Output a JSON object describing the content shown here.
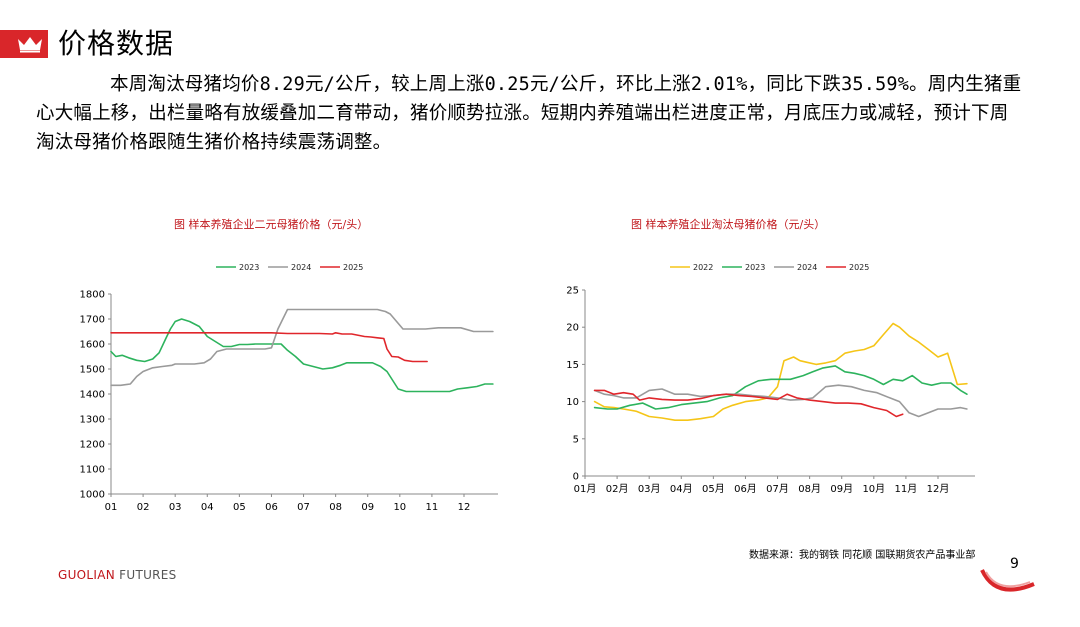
{
  "page": {
    "title": "价格数据",
    "summary": "本周淘汰母猪均价8.29元/公斤，较上周上涨0.25元/公斤，环比上涨2.01%，同比下跌35.59%。周内生猪重心大幅上移，出栏量略有放缓叠加二育带动，猪价顺势拉涨。短期内养殖端出栏进度正常，月底压力或减轻，预计下周淘汰母猪价格跟随生猪价格持续震荡调整。",
    "source": "数据来源：我的钢铁  同花顺  国联期货农产品事业部",
    "brand_main": "GUOLIAN",
    "brand_sub": " FUTURES",
    "page_number": "9"
  },
  "colors": {
    "accent": "#d9262a",
    "s2022": "#f5c518",
    "s2023": "#2db35d",
    "s2024": "#9a9a9a",
    "s2025": "#e0262b"
  },
  "chart_data": [
    {
      "type": "line",
      "title": "图  样本养殖企业二元母猪价格（元/头）",
      "categories": [
        "01",
        "02",
        "03",
        "04",
        "05",
        "06",
        "07",
        "08",
        "09",
        "10",
        "11",
        "12"
      ],
      "ylim": [
        1000,
        1800
      ],
      "yticks": [
        1000,
        1100,
        1200,
        1300,
        1400,
        1500,
        1600,
        1700,
        1800
      ],
      "series": [
        {
          "name": "2023",
          "color_key": "s2023",
          "x": [
            1.0,
            1.15,
            1.35,
            1.55,
            1.8,
            2.05,
            2.3,
            2.5,
            2.7,
            2.85,
            3.0,
            3.2,
            3.45,
            3.75,
            4.0,
            4.25,
            4.5,
            4.75,
            5.0,
            5.25,
            5.5,
            5.75,
            6.0,
            6.15,
            6.3,
            6.5,
            6.75,
            7.0,
            7.3,
            7.6,
            7.9,
            8.15,
            8.35,
            8.6,
            8.9,
            9.15,
            9.4,
            9.6,
            9.8,
            9.95,
            10.2,
            10.5,
            10.8,
            11.0,
            11.3,
            11.55,
            11.8,
            12.1,
            12.4,
            12.65,
            12.9
          ],
          "values": [
            1570,
            1550,
            1555,
            1545,
            1535,
            1530,
            1540,
            1565,
            1620,
            1660,
            1690,
            1700,
            1690,
            1670,
            1630,
            1610,
            1590,
            1590,
            1598,
            1598,
            1600,
            1600,
            1600,
            1600,
            1600,
            1575,
            1550,
            1520,
            1510,
            1500,
            1505,
            1515,
            1525,
            1525,
            1525,
            1525,
            1510,
            1490,
            1450,
            1420,
            1410,
            1410,
            1410,
            1410,
            1410,
            1410,
            1420,
            1425,
            1430,
            1440,
            1440
          ]
        },
        {
          "name": "2024",
          "color_key": "s2024",
          "x": [
            1.0,
            1.3,
            1.6,
            1.8,
            2.0,
            2.3,
            2.6,
            2.9,
            3.0,
            3.3,
            3.6,
            3.9,
            4.1,
            4.3,
            4.6,
            4.9,
            5.2,
            5.5,
            5.8,
            6.0,
            6.2,
            6.5,
            6.8,
            7.1,
            7.5,
            7.9,
            8.3,
            8.7,
            9.0,
            9.3,
            9.55,
            9.7,
            9.9,
            10.1,
            10.3,
            10.5,
            10.8,
            11.2,
            11.6,
            11.9,
            12.3,
            12.6,
            12.9
          ],
          "values": [
            1435,
            1435,
            1440,
            1470,
            1490,
            1505,
            1510,
            1515,
            1520,
            1520,
            1520,
            1525,
            1540,
            1570,
            1580,
            1580,
            1580,
            1580,
            1580,
            1585,
            1660,
            1738,
            1738,
            1738,
            1738,
            1738,
            1738,
            1738,
            1738,
            1738,
            1730,
            1720,
            1690,
            1660,
            1660,
            1660,
            1660,
            1665,
            1665,
            1665,
            1650,
            1650,
            1650
          ]
        },
        {
          "name": "2025",
          "color_key": "s2025",
          "x": [
            1.0,
            2.0,
            3.0,
            4.0,
            5.0,
            6.0,
            6.5,
            7.0,
            7.5,
            7.9,
            8.0,
            8.2,
            8.5,
            8.9,
            9.1,
            9.3,
            9.5,
            9.6,
            9.75,
            9.95,
            10.15,
            10.4,
            10.6,
            10.85
          ],
          "values": [
            1645,
            1645,
            1645,
            1645,
            1645,
            1645,
            1642,
            1642,
            1642,
            1640,
            1645,
            1640,
            1640,
            1630,
            1628,
            1625,
            1622,
            1580,
            1550,
            1548,
            1535,
            1530,
            1530,
            1530
          ]
        }
      ]
    },
    {
      "type": "line",
      "title": "图  样本养殖企业淘汰母猪价格（元/头）",
      "categories": [
        "01月",
        "02月",
        "03月",
        "04月",
        "05月",
        "06月",
        "07月",
        "08月",
        "09月",
        "10月",
        "11月",
        "12月"
      ],
      "ylim": [
        0,
        25
      ],
      "yticks": [
        0,
        5,
        10,
        15,
        20,
        25
      ],
      "series": [
        {
          "name": "2022",
          "color_key": "s2022",
          "x": [
            1.3,
            1.6,
            1.9,
            2.2,
            2.6,
            3.0,
            3.4,
            3.8,
            4.2,
            4.6,
            5.0,
            5.3,
            5.6,
            6.0,
            6.4,
            6.7,
            7.0,
            7.2,
            7.5,
            7.7,
            7.9,
            8.2,
            8.5,
            8.8,
            9.1,
            9.4,
            9.7,
            10.0,
            10.3,
            10.6,
            10.8,
            11.1,
            11.4,
            11.7,
            12.0,
            12.3,
            12.6,
            12.9
          ],
          "values": [
            10.0,
            9.3,
            9.2,
            9.0,
            8.7,
            8.0,
            7.8,
            7.5,
            7.5,
            7.7,
            8.0,
            9.0,
            9.5,
            10.0,
            10.2,
            10.5,
            12.0,
            15.5,
            16.0,
            15.5,
            15.3,
            15.0,
            15.2,
            15.5,
            16.5,
            16.8,
            17.0,
            17.5,
            19.0,
            20.5,
            20.0,
            18.8,
            18.0,
            17.0,
            16.0,
            16.5,
            12.3,
            12.4
          ]
        },
        {
          "name": "2023",
          "color_key": "s2023",
          "x": [
            1.3,
            1.7,
            2.0,
            2.4,
            2.8,
            3.2,
            3.6,
            4.0,
            4.4,
            4.8,
            5.2,
            5.6,
            6.0,
            6.4,
            6.8,
            7.1,
            7.4,
            7.8,
            8.1,
            8.4,
            8.8,
            9.1,
            9.4,
            9.7,
            10.0,
            10.3,
            10.6,
            10.9,
            11.2,
            11.5,
            11.8,
            12.1,
            12.4,
            12.7,
            12.9
          ],
          "values": [
            9.2,
            9.0,
            9.0,
            9.5,
            9.8,
            9.0,
            9.2,
            9.6,
            9.8,
            10.0,
            10.5,
            10.8,
            12.0,
            12.8,
            13.0,
            13.0,
            13.0,
            13.5,
            14.0,
            14.5,
            14.8,
            14.0,
            13.8,
            13.5,
            13.0,
            12.3,
            13.0,
            12.8,
            13.5,
            12.5,
            12.2,
            12.5,
            12.5,
            11.5,
            11.0
          ]
        },
        {
          "name": "2024",
          "color_key": "s2024",
          "x": [
            1.3,
            1.6,
            1.9,
            2.2,
            2.6,
            3.0,
            3.4,
            3.8,
            4.2,
            4.6,
            5.0,
            5.4,
            5.8,
            6.2,
            6.6,
            7.0,
            7.4,
            7.8,
            8.1,
            8.5,
            8.9,
            9.3,
            9.7,
            10.1,
            10.5,
            10.8,
            11.1,
            11.4,
            11.7,
            12.0,
            12.4,
            12.7,
            12.9
          ],
          "values": [
            11.5,
            11.0,
            10.8,
            10.5,
            10.5,
            11.5,
            11.7,
            11.0,
            11.0,
            10.7,
            10.8,
            11.0,
            11.0,
            10.8,
            10.7,
            10.5,
            10.2,
            10.3,
            10.5,
            12.0,
            12.2,
            12.0,
            11.5,
            11.2,
            10.5,
            10.0,
            8.5,
            8.0,
            8.5,
            9.0,
            9.0,
            9.2,
            9.0
          ]
        },
        {
          "name": "2025",
          "color_key": "s2025",
          "x": [
            1.3,
            1.6,
            1.9,
            2.2,
            2.5,
            2.7,
            3.0,
            3.4,
            3.8,
            4.2,
            4.6,
            5.0,
            5.4,
            5.8,
            6.2,
            6.6,
            7.0,
            7.3,
            7.6,
            8.0,
            8.4,
            8.8,
            9.2,
            9.6,
            10.0,
            10.4,
            10.7,
            10.9
          ],
          "values": [
            11.5,
            11.5,
            11.0,
            11.2,
            11.0,
            10.2,
            10.5,
            10.3,
            10.2,
            10.2,
            10.4,
            10.8,
            11.0,
            10.8,
            10.7,
            10.5,
            10.3,
            11.0,
            10.5,
            10.2,
            10.0,
            9.8,
            9.8,
            9.7,
            9.2,
            8.8,
            8.0,
            8.3
          ]
        }
      ]
    }
  ]
}
